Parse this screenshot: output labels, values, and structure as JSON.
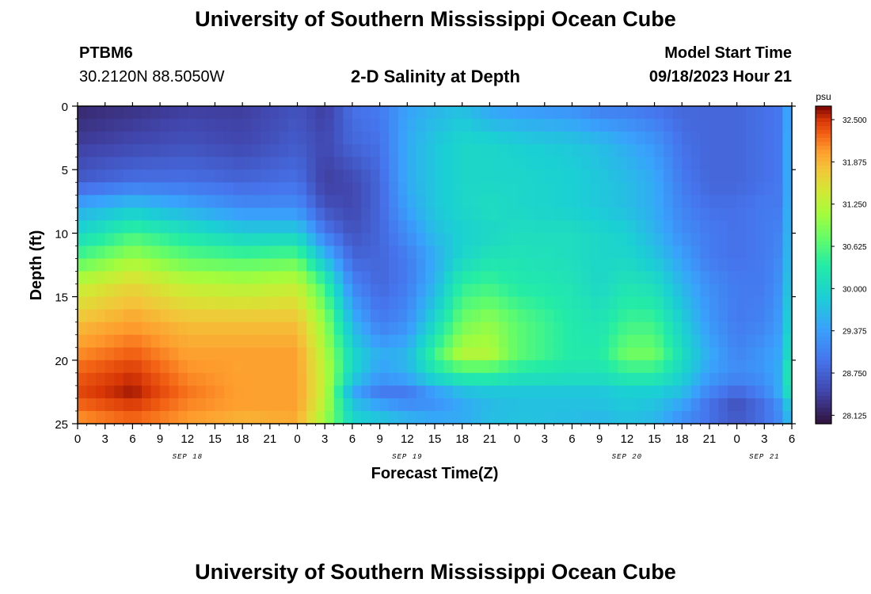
{
  "header": {
    "title": "University of Southern Mississippi Ocean Cube",
    "station_id": "PTBM6",
    "coordinates": "30.2120N  88.5050W",
    "plot_title": "2-D Salinity at Depth",
    "model_start_label": "Model Start Time",
    "model_start_value": "09/18/2023 Hour 21"
  },
  "footer": {
    "title": "University of Southern Mississippi Ocean Cube"
  },
  "chart_data": {
    "type": "heatmap",
    "title": "2-D Salinity at Depth",
    "xlabel": "Forecast Time(Z)",
    "ylabel": "Depth (ft)",
    "colorbar_unit": "psu",
    "x_range": [
      0,
      78
    ],
    "x_tick_values": [
      0,
      3,
      6,
      9,
      12,
      15,
      18,
      21,
      24,
      27,
      30,
      33,
      36,
      39,
      42,
      45,
      48,
      51,
      54,
      57,
      60,
      63,
      66,
      69,
      72,
      75,
      78
    ],
    "x_tick_labels": [
      "0",
      "3",
      "6",
      "9",
      "12",
      "15",
      "18",
      "21",
      "0",
      "3",
      "6",
      "9",
      "12",
      "15",
      "18",
      "21",
      "0",
      "3",
      "6",
      "9",
      "12",
      "15",
      "18",
      "21",
      "0",
      "3",
      "6"
    ],
    "date_labels": [
      {
        "x": 12,
        "label": "SEP 18"
      },
      {
        "x": 36,
        "label": "SEP 19"
      },
      {
        "x": 60,
        "label": "SEP 20"
      },
      {
        "x": 75,
        "label": "SEP 21"
      }
    ],
    "y_range": [
      0,
      25
    ],
    "y_tick_values": [
      0,
      5,
      10,
      15,
      20,
      25
    ],
    "y_tick_labels": [
      "0",
      "5",
      "10",
      "15",
      "20",
      "25"
    ],
    "y_reversed": true,
    "value_range": [
      28.0,
      32.7
    ],
    "colorbar_tick_values": [
      32.5,
      31.875,
      31.25,
      30.625,
      30.0,
      29.375,
      28.75,
      28.125
    ],
    "colorbar_tick_labels": [
      "32.500",
      "31.875",
      "31.250",
      "30.625",
      "30.000",
      "29.375",
      "28.750",
      "28.125"
    ],
    "time_values": [
      0,
      6,
      12,
      18,
      24,
      27,
      30,
      33,
      36,
      39,
      42,
      45,
      48,
      54,
      57,
      60,
      63,
      66,
      69,
      72,
      75,
      77,
      78
    ],
    "depth_values": [
      0,
      3,
      6,
      8,
      10,
      12,
      14,
      17,
      19.5,
      21,
      22.5,
      24,
      25
    ],
    "salinity": [
      [
        28.2,
        28.3,
        28.4,
        28.4,
        28.6,
        28.4,
        28.9,
        29.0,
        29.4,
        29.6,
        29.7,
        29.4,
        29.3,
        29.2,
        29.0,
        29.0,
        28.9,
        28.8,
        28.8,
        28.8,
        28.9,
        29.0,
        29.8
      ],
      [
        28.4,
        28.5,
        28.6,
        28.5,
        28.7,
        28.5,
        28.8,
        28.9,
        29.5,
        29.8,
        30.0,
        30.0,
        29.9,
        29.8,
        29.7,
        29.5,
        29.3,
        28.9,
        28.8,
        28.8,
        28.9,
        29.0,
        29.9
      ],
      [
        28.7,
        28.9,
        28.9,
        28.8,
        28.9,
        28.4,
        28.5,
        28.8,
        29.5,
        29.8,
        30.0,
        30.0,
        30.0,
        29.9,
        29.8,
        29.7,
        29.5,
        29.0,
        28.8,
        28.8,
        28.9,
        29.0,
        29.9
      ],
      [
        29.5,
        29.8,
        29.5,
        29.2,
        29.2,
        28.6,
        28.5,
        28.8,
        29.4,
        29.8,
        30.0,
        30.1,
        30.0,
        29.9,
        29.8,
        29.7,
        29.5,
        29.1,
        28.9,
        28.9,
        29.0,
        29.0,
        30.0
      ],
      [
        30.0,
        30.5,
        30.2,
        29.9,
        29.9,
        29.0,
        28.6,
        28.8,
        29.2,
        29.7,
        29.9,
        30.0,
        30.1,
        30.1,
        30.0,
        29.9,
        29.6,
        29.2,
        29.0,
        28.9,
        29.0,
        29.1,
        30.0
      ],
      [
        30.6,
        31.1,
        30.7,
        30.6,
        30.7,
        29.7,
        28.8,
        28.8,
        29.0,
        29.5,
        30.0,
        30.2,
        30.2,
        30.1,
        30.0,
        30.0,
        29.8,
        29.4,
        29.0,
        28.9,
        29.0,
        29.2,
        30.0
      ],
      [
        31.3,
        31.6,
        31.3,
        31.2,
        31.3,
        30.5,
        29.1,
        28.8,
        29.0,
        29.6,
        30.4,
        30.5,
        30.3,
        30.2,
        30.0,
        30.2,
        30.1,
        29.6,
        29.2,
        29.0,
        29.0,
        29.3,
        30.1
      ],
      [
        31.8,
        32.0,
        31.8,
        31.8,
        31.8,
        31.0,
        29.6,
        29.0,
        29.2,
        30.0,
        30.8,
        31.0,
        30.7,
        30.3,
        30.2,
        30.5,
        30.5,
        29.9,
        29.3,
        29.0,
        29.1,
        29.4,
        30.3
      ],
      [
        32.1,
        32.3,
        32.0,
        32.0,
        32.0,
        31.2,
        30.0,
        29.5,
        29.6,
        30.5,
        31.2,
        31.2,
        30.7,
        30.3,
        30.3,
        30.8,
        30.8,
        30.1,
        29.5,
        29.1,
        29.3,
        29.5,
        30.5
      ],
      [
        32.3,
        32.5,
        32.1,
        32.0,
        32.0,
        31.3,
        30.0,
        29.4,
        29.6,
        30.2,
        30.5,
        30.5,
        30.3,
        30.2,
        30.2,
        30.4,
        30.4,
        30.0,
        29.4,
        29.2,
        29.3,
        29.6,
        30.8
      ],
      [
        32.4,
        32.6,
        32.2,
        32.0,
        32.0,
        31.3,
        29.5,
        29.0,
        29.0,
        29.4,
        29.7,
        29.8,
        29.8,
        29.8,
        29.8,
        29.9,
        29.9,
        29.7,
        29.1,
        28.8,
        29.1,
        29.6,
        30.5
      ],
      [
        32.2,
        32.4,
        32.1,
        32.0,
        32.0,
        31.2,
        29.9,
        29.6,
        29.3,
        29.2,
        29.4,
        29.6,
        29.7,
        29.7,
        29.7,
        29.8,
        29.7,
        29.3,
        28.8,
        28.5,
        28.8,
        29.2,
        30.0
      ],
      [
        32.0,
        32.2,
        32.0,
        31.8,
        31.9,
        31.0,
        30.0,
        29.9,
        29.8,
        29.7,
        29.6,
        29.8,
        29.8,
        29.7,
        29.6,
        29.7,
        29.6,
        29.2,
        29.0,
        28.8,
        29.0,
        29.3,
        29.9
      ]
    ],
    "grid": false,
    "legend": "right-colorbar"
  }
}
